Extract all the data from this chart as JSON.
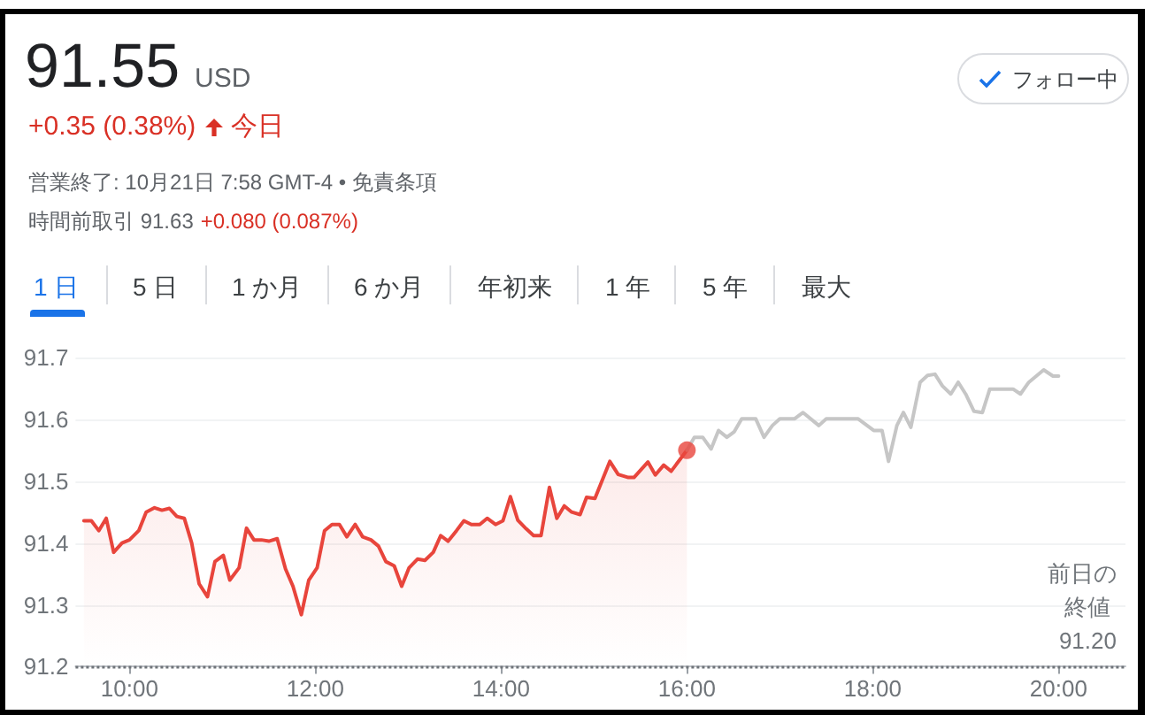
{
  "chart_data": {
    "type": "line",
    "title": "91.55",
    "annotations": [
      "USD",
      "+0.35 (0.38%)",
      "今日",
      "営業終了: 10月21日 7:58 GMT-4 • 免責条項",
      "時間前取引 91.63",
      "+0.080 (0.087%)",
      "1 日",
      "5 日",
      "1 か月",
      "6 か月",
      "年初来",
      "1 年",
      "5 年",
      "最大",
      "フォロー中"
    ],
    "series": [
      {
        "type": "area",
        "color": "#e8453c",
        "x": [
          9.51,
          9.59,
          9.67,
          9.75,
          9.83,
          9.92,
          10.0,
          10.1,
          10.18,
          10.27,
          10.35,
          10.43,
          10.51,
          10.59,
          10.67,
          10.75,
          10.84,
          10.92,
          11.01,
          11.08,
          11.18,
          11.26,
          11.34,
          11.42,
          11.5,
          11.59,
          11.68,
          11.76,
          11.85,
          11.93,
          12.02,
          12.1,
          12.18,
          12.26,
          12.34,
          12.43,
          12.51,
          12.6,
          12.68,
          12.76,
          12.85,
          12.93,
          13.01,
          13.1,
          13.18,
          13.27,
          13.35,
          13.43,
          13.52,
          13.6,
          13.68,
          13.77,
          13.85,
          13.94,
          14.02,
          14.1,
          14.18,
          14.27,
          14.35,
          14.43,
          14.52,
          14.6,
          14.68,
          14.76,
          14.85,
          14.92,
          15.01,
          15.17,
          15.26,
          15.37,
          15.43,
          15.58,
          15.66,
          15.75,
          15.83,
          16.0
        ],
        "values": [
          91.436,
          91.436,
          91.42,
          91.44,
          91.385,
          91.4,
          91.405,
          91.42,
          91.45,
          91.457,
          91.453,
          91.456,
          91.443,
          91.44,
          91.4,
          91.334,
          91.313,
          91.37,
          91.38,
          91.34,
          91.36,
          91.424,
          91.405,
          91.405,
          91.403,
          91.407,
          91.358,
          91.33,
          91.284,
          91.34,
          91.36,
          91.42,
          91.43,
          91.43,
          91.41,
          91.43,
          91.41,
          91.405,
          91.395,
          91.37,
          91.363,
          91.33,
          91.36,
          91.374,
          91.372,
          91.385,
          91.412,
          91.403,
          91.42,
          91.436,
          91.43,
          91.43,
          91.44,
          91.43,
          91.436,
          91.475,
          91.437,
          91.423,
          91.412,
          91.412,
          91.49,
          91.44,
          91.46,
          91.45,
          91.446,
          91.474,
          91.472,
          91.532,
          91.511,
          91.506,
          91.506,
          91.531,
          91.51,
          91.526,
          91.516,
          91.55
        ]
      },
      {
        "type": "line",
        "color": "#c6c6c6",
        "x": [
          16.0,
          16.08,
          16.17,
          16.26,
          16.34,
          16.43,
          16.51,
          16.59,
          16.74,
          16.83,
          16.92,
          17.0,
          17.16,
          17.25,
          17.42,
          17.5,
          17.84,
          18.01,
          18.1,
          18.17,
          18.26,
          18.33,
          18.41,
          18.51,
          18.59,
          18.67,
          18.75,
          18.84,
          18.92,
          19.0,
          19.09,
          19.18,
          19.26,
          19.51,
          19.59,
          19.68,
          19.84,
          19.94,
          20.0
        ],
        "values": [
          91.55,
          91.571,
          91.571,
          91.552,
          91.582,
          91.571,
          91.58,
          91.601,
          91.601,
          91.571,
          91.59,
          91.601,
          91.601,
          91.611,
          91.59,
          91.601,
          91.601,
          91.582,
          91.582,
          91.532,
          91.59,
          91.611,
          91.587,
          91.66,
          91.671,
          91.673,
          91.654,
          91.641,
          91.66,
          91.641,
          91.613,
          91.611,
          91.649,
          91.649,
          91.641,
          91.66,
          91.68,
          91.67,
          91.67
        ]
      },
      {
        "type": "scatter",
        "color": "#e8453c",
        "marker": "circle",
        "x": [
          16.0
        ],
        "values": [
          91.55
        ]
      }
    ],
    "xlim": [
      9.42,
      20.72
    ],
    "xticks": [
      {
        "value": 10,
        "label": "10:00"
      },
      {
        "value": 12,
        "label": "12:00"
      },
      {
        "value": 14,
        "label": "14:00"
      },
      {
        "value": 16,
        "label": "16:00"
      },
      {
        "value": 18,
        "label": "18:00"
      },
      {
        "value": 20,
        "label": "20:00"
      }
    ],
    "ylim": [
      91.2,
      91.7
    ],
    "yticks": [
      91.2,
      91.3,
      91.4,
      91.5,
      91.6,
      91.7
    ],
    "ref_lines": [
      {
        "axis": "y",
        "value": 91.2,
        "label": "前日の終値 91.20",
        "color": "#70757a",
        "line_style": "dotted"
      }
    ],
    "grid": "y",
    "marker": "none",
    "line_style": "solid"
  }
}
